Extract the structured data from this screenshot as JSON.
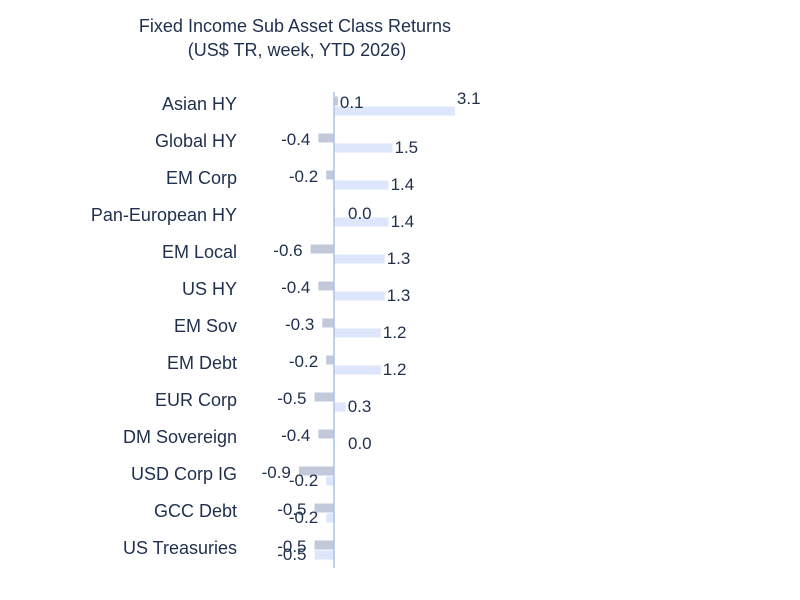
{
  "chart_data": {
    "type": "bar",
    "orientation": "horizontal",
    "title": "Fixed Income Sub Asset Class Returns",
    "subtitle": "(US$ TR, week, YTD 2026)",
    "categories": [
      "Asian HY",
      "Global HY",
      "EM Corp",
      "Pan-European HY",
      "EM Local",
      "US HY",
      "EM Sov",
      "EM Debt",
      "EUR Corp",
      "DM Sovereign",
      "USD Corp IG",
      "GCC Debt",
      "US Treasuries"
    ],
    "series": [
      {
        "color": "#c2c9db",
        "values": [
          0.1,
          -0.4,
          -0.2,
          0.0,
          -0.6,
          -0.4,
          -0.3,
          -0.2,
          -0.5,
          -0.4,
          -0.9,
          -0.5,
          -0.5
        ],
        "labels": [
          "0.1",
          "-0.4",
          "-0.2",
          "0.0",
          "-0.6",
          "-0.4",
          "-0.3",
          "-0.2",
          "-0.5",
          "-0.4",
          "-0.9",
          "-0.5",
          "-0.5"
        ]
      },
      {
        "color": "#dde6fb",
        "values": [
          3.1,
          1.5,
          1.4,
          1.4,
          1.3,
          1.3,
          1.2,
          1.2,
          0.3,
          0.0,
          -0.2,
          -0.2,
          -0.5
        ],
        "labels": [
          "3.1",
          "1.5",
          "1.4",
          "1.4",
          "1.3",
          "1.3",
          "1.2",
          "1.2",
          "0.3",
          "0.0",
          "-0.2",
          "-0.2",
          "-0.5"
        ]
      }
    ],
    "xlim": [
      -1.0,
      3.3
    ],
    "grid": false,
    "legend": "none",
    "colors": {
      "text": "#1f2f4d",
      "axis": "#a9c4e6"
    }
  }
}
